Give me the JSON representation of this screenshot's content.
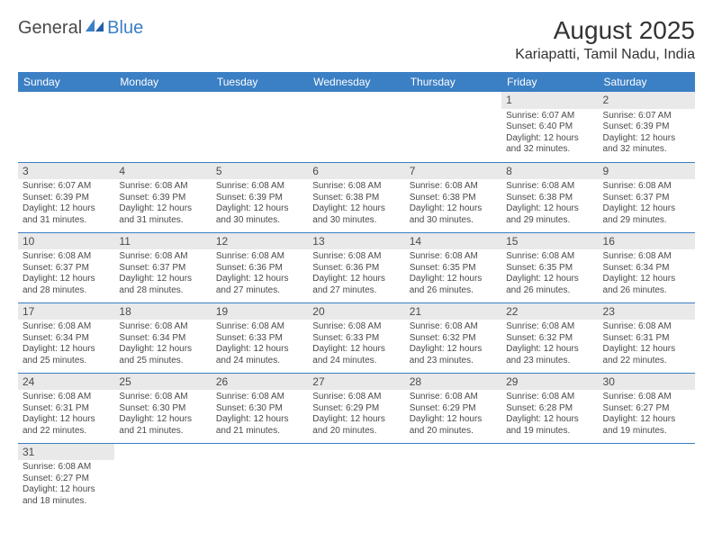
{
  "brand": {
    "part1": "General",
    "part2": "Blue"
  },
  "header": {
    "month_title": "August 2025",
    "location": "Kariapatti, Tamil Nadu, India"
  },
  "style": {
    "header_bg": "#3b7fc4",
    "header_fg": "#ffffff",
    "shade_bg": "#e9e9e9",
    "row_border": "#3b7fc4",
    "text_color": "#4a4a4a",
    "body_bg": "#ffffff",
    "month_title_fontsize": 28,
    "location_fontsize": 16,
    "dayhead_fontsize": 12,
    "cell_fontsize": 10
  },
  "day_headers": [
    "Sunday",
    "Monday",
    "Tuesday",
    "Wednesday",
    "Thursday",
    "Friday",
    "Saturday"
  ],
  "weeks": [
    [
      null,
      null,
      null,
      null,
      null,
      {
        "n": "1",
        "sr": "Sunrise: 6:07 AM",
        "ss": "Sunset: 6:40 PM",
        "d1": "Daylight: 12 hours",
        "d2": "and 32 minutes."
      },
      {
        "n": "2",
        "sr": "Sunrise: 6:07 AM",
        "ss": "Sunset: 6:39 PM",
        "d1": "Daylight: 12 hours",
        "d2": "and 32 minutes."
      }
    ],
    [
      {
        "n": "3",
        "sr": "Sunrise: 6:07 AM",
        "ss": "Sunset: 6:39 PM",
        "d1": "Daylight: 12 hours",
        "d2": "and 31 minutes."
      },
      {
        "n": "4",
        "sr": "Sunrise: 6:08 AM",
        "ss": "Sunset: 6:39 PM",
        "d1": "Daylight: 12 hours",
        "d2": "and 31 minutes."
      },
      {
        "n": "5",
        "sr": "Sunrise: 6:08 AM",
        "ss": "Sunset: 6:39 PM",
        "d1": "Daylight: 12 hours",
        "d2": "and 30 minutes."
      },
      {
        "n": "6",
        "sr": "Sunrise: 6:08 AM",
        "ss": "Sunset: 6:38 PM",
        "d1": "Daylight: 12 hours",
        "d2": "and 30 minutes."
      },
      {
        "n": "7",
        "sr": "Sunrise: 6:08 AM",
        "ss": "Sunset: 6:38 PM",
        "d1": "Daylight: 12 hours",
        "d2": "and 30 minutes."
      },
      {
        "n": "8",
        "sr": "Sunrise: 6:08 AM",
        "ss": "Sunset: 6:38 PM",
        "d1": "Daylight: 12 hours",
        "d2": "and 29 minutes."
      },
      {
        "n": "9",
        "sr": "Sunrise: 6:08 AM",
        "ss": "Sunset: 6:37 PM",
        "d1": "Daylight: 12 hours",
        "d2": "and 29 minutes."
      }
    ],
    [
      {
        "n": "10",
        "sr": "Sunrise: 6:08 AM",
        "ss": "Sunset: 6:37 PM",
        "d1": "Daylight: 12 hours",
        "d2": "and 28 minutes."
      },
      {
        "n": "11",
        "sr": "Sunrise: 6:08 AM",
        "ss": "Sunset: 6:37 PM",
        "d1": "Daylight: 12 hours",
        "d2": "and 28 minutes."
      },
      {
        "n": "12",
        "sr": "Sunrise: 6:08 AM",
        "ss": "Sunset: 6:36 PM",
        "d1": "Daylight: 12 hours",
        "d2": "and 27 minutes."
      },
      {
        "n": "13",
        "sr": "Sunrise: 6:08 AM",
        "ss": "Sunset: 6:36 PM",
        "d1": "Daylight: 12 hours",
        "d2": "and 27 minutes."
      },
      {
        "n": "14",
        "sr": "Sunrise: 6:08 AM",
        "ss": "Sunset: 6:35 PM",
        "d1": "Daylight: 12 hours",
        "d2": "and 26 minutes."
      },
      {
        "n": "15",
        "sr": "Sunrise: 6:08 AM",
        "ss": "Sunset: 6:35 PM",
        "d1": "Daylight: 12 hours",
        "d2": "and 26 minutes."
      },
      {
        "n": "16",
        "sr": "Sunrise: 6:08 AM",
        "ss": "Sunset: 6:34 PM",
        "d1": "Daylight: 12 hours",
        "d2": "and 26 minutes."
      }
    ],
    [
      {
        "n": "17",
        "sr": "Sunrise: 6:08 AM",
        "ss": "Sunset: 6:34 PM",
        "d1": "Daylight: 12 hours",
        "d2": "and 25 minutes."
      },
      {
        "n": "18",
        "sr": "Sunrise: 6:08 AM",
        "ss": "Sunset: 6:34 PM",
        "d1": "Daylight: 12 hours",
        "d2": "and 25 minutes."
      },
      {
        "n": "19",
        "sr": "Sunrise: 6:08 AM",
        "ss": "Sunset: 6:33 PM",
        "d1": "Daylight: 12 hours",
        "d2": "and 24 minutes."
      },
      {
        "n": "20",
        "sr": "Sunrise: 6:08 AM",
        "ss": "Sunset: 6:33 PM",
        "d1": "Daylight: 12 hours",
        "d2": "and 24 minutes."
      },
      {
        "n": "21",
        "sr": "Sunrise: 6:08 AM",
        "ss": "Sunset: 6:32 PM",
        "d1": "Daylight: 12 hours",
        "d2": "and 23 minutes."
      },
      {
        "n": "22",
        "sr": "Sunrise: 6:08 AM",
        "ss": "Sunset: 6:32 PM",
        "d1": "Daylight: 12 hours",
        "d2": "and 23 minutes."
      },
      {
        "n": "23",
        "sr": "Sunrise: 6:08 AM",
        "ss": "Sunset: 6:31 PM",
        "d1": "Daylight: 12 hours",
        "d2": "and 22 minutes."
      }
    ],
    [
      {
        "n": "24",
        "sr": "Sunrise: 6:08 AM",
        "ss": "Sunset: 6:31 PM",
        "d1": "Daylight: 12 hours",
        "d2": "and 22 minutes."
      },
      {
        "n": "25",
        "sr": "Sunrise: 6:08 AM",
        "ss": "Sunset: 6:30 PM",
        "d1": "Daylight: 12 hours",
        "d2": "and 21 minutes."
      },
      {
        "n": "26",
        "sr": "Sunrise: 6:08 AM",
        "ss": "Sunset: 6:30 PM",
        "d1": "Daylight: 12 hours",
        "d2": "and 21 minutes."
      },
      {
        "n": "27",
        "sr": "Sunrise: 6:08 AM",
        "ss": "Sunset: 6:29 PM",
        "d1": "Daylight: 12 hours",
        "d2": "and 20 minutes."
      },
      {
        "n": "28",
        "sr": "Sunrise: 6:08 AM",
        "ss": "Sunset: 6:29 PM",
        "d1": "Daylight: 12 hours",
        "d2": "and 20 minutes."
      },
      {
        "n": "29",
        "sr": "Sunrise: 6:08 AM",
        "ss": "Sunset: 6:28 PM",
        "d1": "Daylight: 12 hours",
        "d2": "and 19 minutes."
      },
      {
        "n": "30",
        "sr": "Sunrise: 6:08 AM",
        "ss": "Sunset: 6:27 PM",
        "d1": "Daylight: 12 hours",
        "d2": "and 19 minutes."
      }
    ],
    [
      {
        "n": "31",
        "sr": "Sunrise: 6:08 AM",
        "ss": "Sunset: 6:27 PM",
        "d1": "Daylight: 12 hours",
        "d2": "and 18 minutes."
      },
      null,
      null,
      null,
      null,
      null,
      null
    ]
  ]
}
